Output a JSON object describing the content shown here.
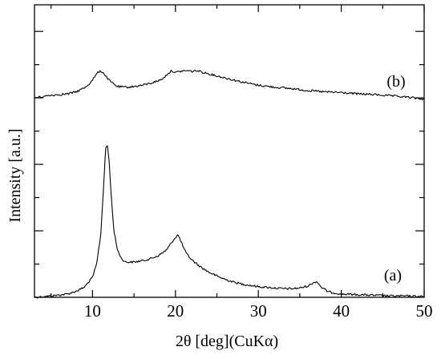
{
  "chart_data": {
    "type": "line",
    "xlabel": "2θ [deg](CuKα)",
    "ylabel": "Intensity [a.u.]",
    "xlim": [
      3,
      50
    ],
    "ylim": [
      0,
      4.4
    ],
    "x_ticks": [
      10,
      20,
      30,
      40,
      50
    ],
    "grid": false,
    "series": [
      {
        "name": "(a)",
        "x": [
          3,
          5,
          7,
          8,
          9,
          10,
          10.5,
          11,
          11.3,
          11.6,
          11.8,
          12.0,
          12.3,
          12.6,
          13,
          13.5,
          14,
          15,
          16,
          17,
          18,
          19,
          19.5,
          20,
          20.3,
          20.6,
          20.9,
          21.3,
          22,
          23,
          24,
          25,
          26,
          27,
          28,
          29,
          30,
          31,
          32,
          33,
          34,
          35,
          36,
          36.5,
          37,
          37.3,
          37.7,
          38.5,
          40,
          42,
          44,
          46,
          48,
          50
        ],
        "y": [
          0.0,
          0.02,
          0.05,
          0.09,
          0.15,
          0.3,
          0.5,
          0.95,
          1.6,
          2.25,
          2.28,
          2.05,
          1.45,
          0.98,
          0.72,
          0.58,
          0.53,
          0.53,
          0.55,
          0.58,
          0.63,
          0.72,
          0.82,
          0.9,
          0.94,
          0.86,
          0.77,
          0.66,
          0.56,
          0.46,
          0.38,
          0.32,
          0.27,
          0.23,
          0.2,
          0.18,
          0.16,
          0.15,
          0.14,
          0.13,
          0.13,
          0.14,
          0.17,
          0.21,
          0.24,
          0.2,
          0.14,
          0.08,
          0.05,
          0.04,
          0.03,
          0.02,
          0.02,
          0.01
        ]
      },
      {
        "name": "(b)",
        "x": [
          3,
          5,
          7,
          8,
          9,
          9.5,
          10,
          10.5,
          10.9,
          11.3,
          11.7,
          12.2,
          13,
          14,
          15,
          16,
          17,
          18,
          18.6,
          19.1,
          19.6,
          20.0,
          20.6,
          21.3,
          22,
          22.6,
          23.5,
          25,
          26,
          27,
          28,
          30,
          32,
          34,
          36,
          38,
          40,
          42,
          44,
          46,
          48,
          50
        ],
        "y": [
          3.0,
          3.04,
          3.06,
          3.09,
          3.15,
          3.2,
          3.27,
          3.36,
          3.41,
          3.38,
          3.31,
          3.24,
          3.17,
          3.16,
          3.17,
          3.19,
          3.22,
          3.26,
          3.3,
          3.37,
          3.41,
          3.38,
          3.4,
          3.41,
          3.4,
          3.41,
          3.38,
          3.33,
          3.3,
          3.27,
          3.24,
          3.19,
          3.16,
          3.14,
          3.11,
          3.09,
          3.08,
          3.06,
          3.05,
          3.03,
          3.01,
          2.98
        ]
      }
    ]
  }
}
